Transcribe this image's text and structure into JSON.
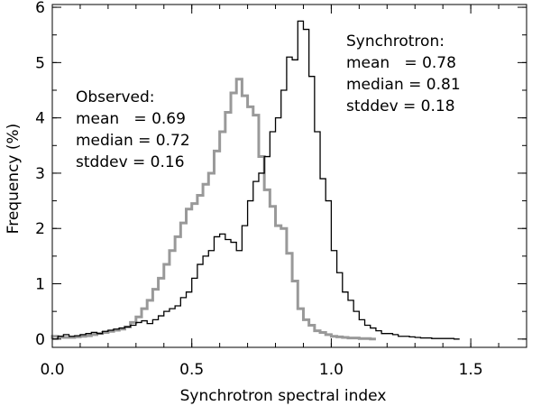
{
  "chart_data": {
    "type": "histogram",
    "title": "",
    "xlabel": "Synchrotron spectral index",
    "ylabel": "Frequency (%)",
    "xlim": [
      0.0,
      1.7
    ],
    "ylim": [
      -0.15,
      6.05
    ],
    "xticks": [
      {
        "value": 0.0,
        "label": "0.0"
      },
      {
        "value": 0.5,
        "label": "0.5"
      },
      {
        "value": 1.0,
        "label": "1.0"
      },
      {
        "value": 1.5,
        "label": "1.5"
      }
    ],
    "yticks": [
      {
        "value": 0,
        "label": "0"
      },
      {
        "value": 1,
        "label": "1"
      },
      {
        "value": 2,
        "label": "2"
      },
      {
        "value": 3,
        "label": "3"
      },
      {
        "value": 4,
        "label": "4"
      },
      {
        "value": 5,
        "label": "5"
      },
      {
        "value": 6,
        "label": "6"
      }
    ],
    "bin_start": 0.0,
    "bin_width": 0.02,
    "series": [
      {
        "name": "Synchrotron",
        "color": "#000000",
        "values": [
          0.0,
          0.05,
          0.08,
          0.05,
          0.06,
          0.08,
          0.1,
          0.12,
          0.1,
          0.14,
          0.16,
          0.18,
          0.2,
          0.22,
          0.25,
          0.3,
          0.33,
          0.28,
          0.35,
          0.42,
          0.5,
          0.55,
          0.6,
          0.75,
          0.85,
          1.1,
          1.35,
          1.5,
          1.6,
          1.85,
          1.9,
          1.8,
          1.75,
          1.6,
          2.05,
          2.5,
          2.85,
          3.0,
          3.3,
          3.75,
          4.0,
          4.5,
          5.1,
          5.05,
          5.75,
          5.6,
          4.75,
          3.75,
          2.9,
          2.5,
          1.6,
          1.2,
          0.85,
          0.7,
          0.5,
          0.35,
          0.25,
          0.2,
          0.15,
          0.1,
          0.1,
          0.08,
          0.05,
          0.05,
          0.04,
          0.03,
          0.02,
          0.02,
          0.01,
          0.01,
          0.01,
          0.01,
          0.0
        ]
      },
      {
        "name": "Observed",
        "color": "#999999",
        "values": [
          0.05,
          0.04,
          0.03,
          0.03,
          0.04,
          0.05,
          0.06,
          0.08,
          0.1,
          0.12,
          0.14,
          0.16,
          0.18,
          0.22,
          0.3,
          0.4,
          0.55,
          0.7,
          0.9,
          1.1,
          1.35,
          1.6,
          1.85,
          2.1,
          2.35,
          2.45,
          2.6,
          2.8,
          3.0,
          3.4,
          3.75,
          4.1,
          4.45,
          4.7,
          4.4,
          4.2,
          4.05,
          3.3,
          2.7,
          2.4,
          2.05,
          2.0,
          1.55,
          1.05,
          0.55,
          0.35,
          0.25,
          0.15,
          0.12,
          0.08,
          0.05,
          0.04,
          0.03,
          0.02,
          0.02,
          0.01,
          0.01,
          0.0
        ]
      }
    ],
    "annotations": {
      "synchrotron": {
        "heading": "Synchrotron:",
        "mean": "mean   = 0.78",
        "median": "median = 0.81",
        "stddev": "stddev = 0.18"
      },
      "observed": {
        "heading": "Observed:",
        "mean": "mean   = 0.69",
        "median": "median = 0.72",
        "stddev": "stddev = 0.16"
      }
    }
  }
}
